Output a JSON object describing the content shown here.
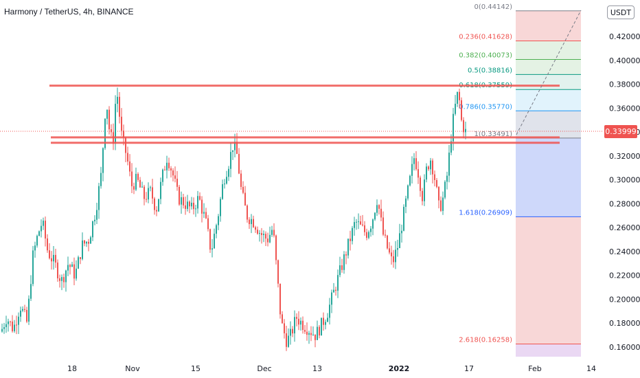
{
  "header": {
    "symbol": "Harmony / TetherUS",
    "interval": "4h",
    "exchange": "BINANCE",
    "separator": ", "
  },
  "price_axis": {
    "unit": "USDT",
    "last_price": "0.33999"
  },
  "colors": {
    "up": "#26a69a",
    "down": "#ef5350",
    "level_line": "#ef5350",
    "last_price": "#ef5350"
  },
  "chart_data": {
    "type": "candlestick",
    "title": "",
    "y_ticks": [
      "0.42000",
      "0.40000",
      "0.38000",
      "0.36000",
      "0.34000",
      "0.32000",
      "0.30000",
      "0.28000",
      "0.26000",
      "0.24000",
      "0.22000",
      "0.20000",
      "0.18000",
      "0.16000"
    ],
    "x_ticks": [
      "18",
      "Nov",
      "15",
      "Dec",
      "13",
      "2022",
      "17",
      "Feb",
      "14"
    ],
    "ylim": [
      0.152,
      0.448
    ],
    "price_path": [
      [
        0,
        0.17
      ],
      [
        10,
        0.185
      ],
      [
        20,
        0.175
      ],
      [
        30,
        0.195
      ],
      [
        40,
        0.18
      ],
      [
        48,
        0.235
      ],
      [
        56,
        0.255
      ],
      [
        62,
        0.265
      ],
      [
        70,
        0.24
      ],
      [
        80,
        0.23
      ],
      [
        90,
        0.215
      ],
      [
        100,
        0.23
      ],
      [
        110,
        0.22
      ],
      [
        120,
        0.245
      ],
      [
        130,
        0.25
      ],
      [
        140,
        0.275
      ],
      [
        148,
        0.305
      ],
      [
        155,
        0.37
      ],
      [
        160,
        0.34
      ],
      [
        165,
        0.33
      ],
      [
        170,
        0.378
      ],
      [
        178,
        0.335
      ],
      [
        185,
        0.32
      ],
      [
        192,
        0.295
      ],
      [
        200,
        0.3
      ],
      [
        210,
        0.285
      ],
      [
        220,
        0.29
      ],
      [
        228,
        0.275
      ],
      [
        236,
        0.3
      ],
      [
        244,
        0.32
      ],
      [
        252,
        0.305
      ],
      [
        260,
        0.285
      ],
      [
        270,
        0.28
      ],
      [
        280,
        0.275
      ],
      [
        290,
        0.285
      ],
      [
        300,
        0.265
      ],
      [
        308,
        0.24
      ],
      [
        318,
        0.27
      ],
      [
        326,
        0.3
      ],
      [
        334,
        0.315
      ],
      [
        340,
        0.33
      ],
      [
        346,
        0.32
      ],
      [
        352,
        0.29
      ],
      [
        360,
        0.27
      ],
      [
        370,
        0.265
      ],
      [
        380,
        0.255
      ],
      [
        390,
        0.25
      ],
      [
        398,
        0.26
      ],
      [
        404,
        0.22
      ],
      [
        410,
        0.18
      ],
      [
        418,
        0.165
      ],
      [
        424,
        0.17
      ],
      [
        432,
        0.185
      ],
      [
        440,
        0.18
      ],
      [
        450,
        0.175
      ],
      [
        460,
        0.17
      ],
      [
        470,
        0.18
      ],
      [
        478,
        0.19
      ],
      [
        486,
        0.205
      ],
      [
        494,
        0.22
      ],
      [
        502,
        0.235
      ],
      [
        510,
        0.25
      ],
      [
        518,
        0.265
      ],
      [
        526,
        0.26
      ],
      [
        534,
        0.255
      ],
      [
        542,
        0.265
      ],
      [
        550,
        0.285
      ],
      [
        558,
        0.255
      ],
      [
        566,
        0.24
      ],
      [
        572,
        0.23
      ],
      [
        580,
        0.245
      ],
      [
        588,
        0.27
      ],
      [
        596,
        0.295
      ],
      [
        604,
        0.32
      ],
      [
        610,
        0.305
      ],
      [
        616,
        0.285
      ],
      [
        622,
        0.31
      ],
      [
        628,
        0.318
      ],
      [
        634,
        0.3
      ],
      [
        640,
        0.275
      ],
      [
        646,
        0.285
      ],
      [
        652,
        0.305
      ],
      [
        658,
        0.34
      ],
      [
        663,
        0.36
      ],
      [
        668,
        0.375
      ],
      [
        672,
        0.35
      ],
      [
        678,
        0.34
      ]
    ]
  },
  "levels": [
    {
      "price": 0.3788,
      "x1": 72,
      "x2": 815
    },
    {
      "price": 0.3355,
      "x1": 74,
      "x2": 815
    },
    {
      "price": 0.331,
      "x1": 74,
      "x2": 815
    }
  ],
  "fibonacci": {
    "levels": [
      {
        "label": "0(0.44142)",
        "price": 0.44142,
        "color": "#787b86",
        "fill": "#f8d7d7"
      },
      {
        "label": "0.236(0.41628)",
        "price": 0.41628,
        "color": "#ef5350",
        "fill": "#e4f2e4"
      },
      {
        "label": "0.382(0.40073)",
        "price": 0.40073,
        "color": "#4caf50",
        "fill": "#e4f2e4"
      },
      {
        "label": "0.5(0.38816)",
        "price": 0.38816,
        "color": "#089981",
        "fill": "#e2f2ee"
      },
      {
        "label": "0.618(0.37559)",
        "price": 0.37559,
        "color": "#089981",
        "fill": "#e1f3fc"
      },
      {
        "label": "0.786(0.35770)",
        "price": 0.3577,
        "color": "#2196f3",
        "fill": "#e0e3eb"
      },
      {
        "label": "1(0.33491)",
        "price": 0.33491,
        "color": "#787b86",
        "fill": "#ced8fa"
      },
      {
        "label": "1.618(0.26909)",
        "price": 0.26909,
        "color": "#2962ff",
        "fill": "#f8d7d7"
      },
      {
        "label": "2.618(0.16258)",
        "price": 0.16258,
        "color": "#ef5350",
        "fill": "#ead8f3"
      }
    ]
  }
}
